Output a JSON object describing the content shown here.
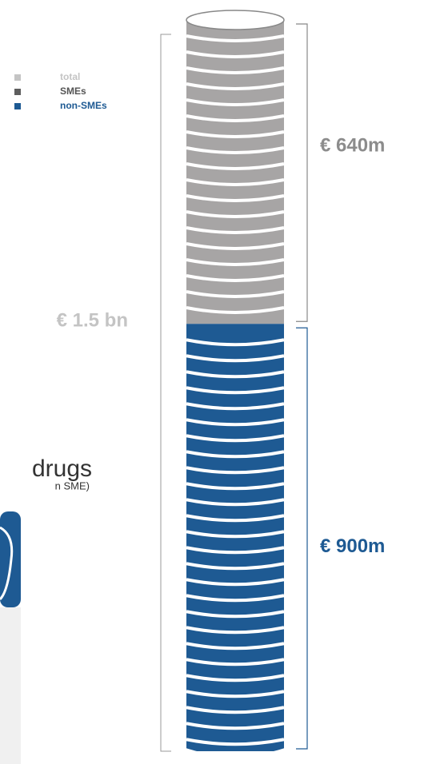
{
  "chart_data": {
    "type": "coin-stack",
    "series": [
      {
        "name": "SMEs",
        "color": "#a7a5a5",
        "legend_color": "#5e5e5e",
        "values": [
          640
        ],
        "value_labels": [
          "€ 640m"
        ],
        "label_color": "#8c8c8c"
      },
      {
        "name": "non-SMEs",
        "color": "#1e5a93",
        "legend_color": "#1e5a93",
        "values": [
          900
        ],
        "value_labels": [
          "€ 900m"
        ],
        "label_color": "#1e5a93"
      }
    ],
    "total": {
      "name": "total",
      "value": 1500,
      "label": "€ 1.5 bn",
      "color": "#c4c4c4"
    },
    "texts": [
      "drugs",
      "n SME)"
    ]
  }
}
